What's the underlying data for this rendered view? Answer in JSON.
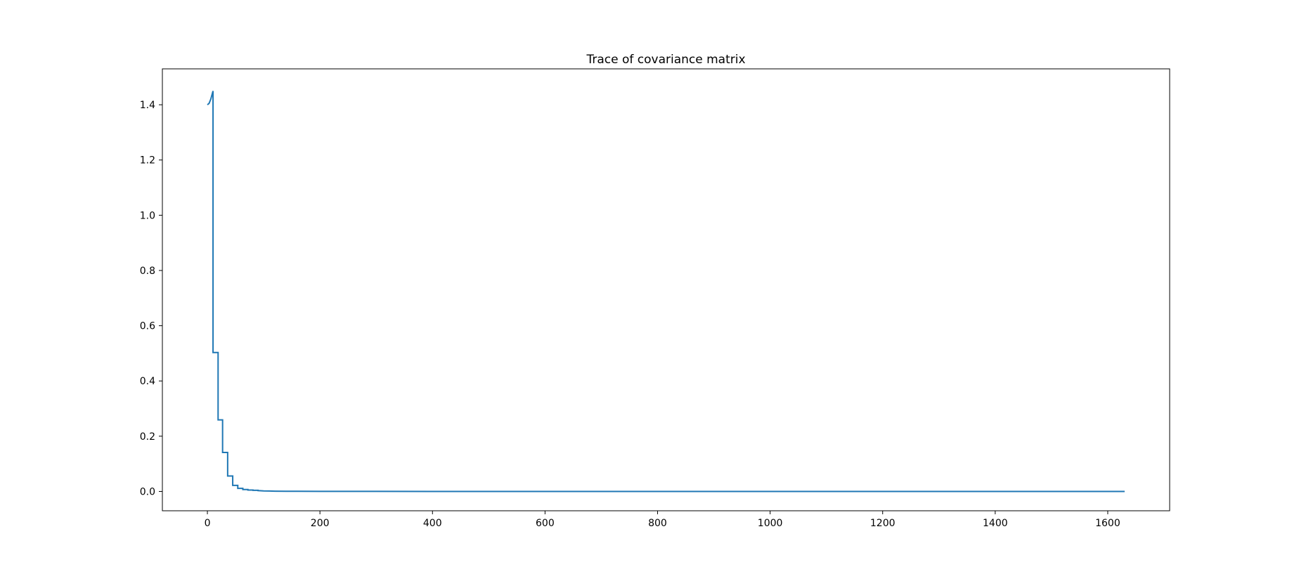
{
  "chart_data": {
    "type": "line",
    "title": "Trace of covariance matrix",
    "xlabel": "",
    "ylabel": "",
    "xlim": [
      -80,
      1710
    ],
    "ylim": [
      -0.07,
      1.53
    ],
    "xticks": [
      0,
      200,
      400,
      600,
      800,
      1000,
      1200,
      1400,
      1600
    ],
    "xtick_labels": [
      "0",
      "200",
      "400",
      "600",
      "800",
      "1000",
      "1200",
      "1400",
      "1600"
    ],
    "yticks": [
      0.0,
      0.2,
      0.4,
      0.6,
      0.8,
      1.0,
      1.2,
      1.4
    ],
    "ytick_labels": [
      "0.0",
      "0.2",
      "0.4",
      "0.6",
      "0.8",
      "1.0",
      "1.2",
      "1.4"
    ],
    "grid": false,
    "legend": "none",
    "line_color": "#1f77b4",
    "series": [
      {
        "x": [
          0,
          3,
          6,
          8,
          10,
          10,
          19,
          19,
          27,
          27,
          36,
          36,
          45,
          45,
          54,
          54,
          63,
          63,
          72,
          72,
          81,
          81,
          90,
          90,
          100,
          110,
          120,
          140,
          160,
          200,
          300,
          400,
          600,
          800,
          1000,
          1200,
          1400,
          1630
        ],
        "y": [
          1.4,
          1.405,
          1.42,
          1.435,
          1.45,
          0.503,
          0.503,
          0.259,
          0.259,
          0.141,
          0.141,
          0.056,
          0.056,
          0.022,
          0.022,
          0.011,
          0.011,
          0.007,
          0.007,
          0.005,
          0.005,
          0.004,
          0.004,
          0.003,
          0.002,
          0.0015,
          0.001,
          0.0007,
          0.0005,
          0.0003,
          0.0002,
          0.0001,
          0.0001,
          0.0,
          0.0,
          0.0,
          0.0,
          0.0
        ]
      }
    ]
  }
}
